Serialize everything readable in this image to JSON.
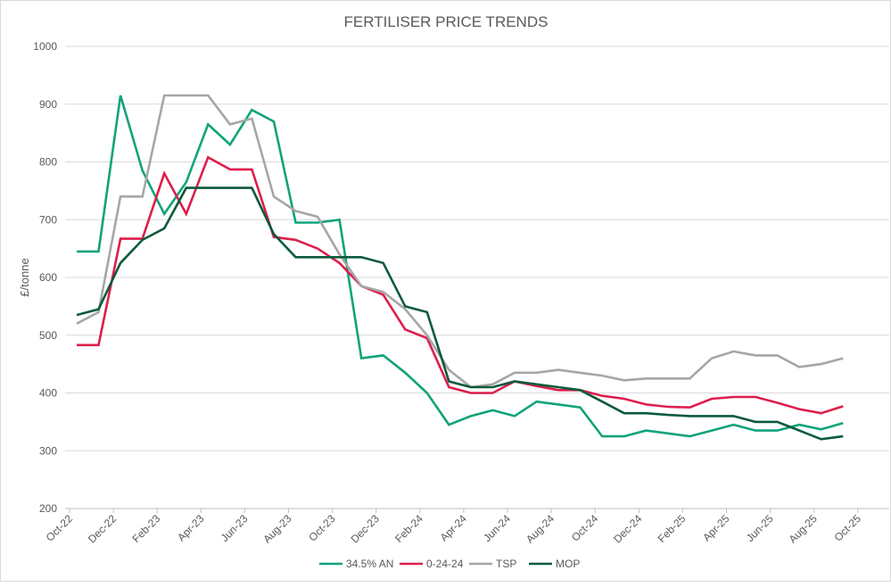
{
  "chart_data": {
    "type": "line",
    "title": "FERTILISER PRICE TRENDS",
    "xlabel": "",
    "ylabel": "£/tonne",
    "ylim": [
      200,
      1000
    ],
    "yticks": [
      "200",
      "300",
      "400",
      "500",
      "600",
      "700",
      "800",
      "900",
      "1000"
    ],
    "grid": true,
    "legend_placement": "bottom",
    "x": [
      "Oct-22",
      "Nov-22",
      "Dec-22",
      "Jan-23",
      "Feb-23",
      "Mar-23",
      "Apr-23",
      "May-23",
      "Jun-23",
      "Jul-23",
      "Aug-23",
      "Sep-23",
      "Oct-23",
      "Nov-23",
      "Dec-23",
      "Jan-24",
      "Feb-24",
      "Mar-24",
      "Apr-24",
      "May-24",
      "Jun-24",
      "Jul-24",
      "Aug-24",
      "Sep-24",
      "Oct-24",
      "Nov-24",
      "Dec-24",
      "Jan-25",
      "Feb-25",
      "Mar-25",
      "Apr-25",
      "May-25",
      "Jun-25",
      "Jul-25",
      "Aug-25",
      "Sep-25"
    ],
    "xtick_labels": [
      "Oct-22",
      "Dec-22",
      "Feb-23",
      "Apr-23",
      "Jun-23",
      "Aug-23",
      "Oct-23",
      "Dec-23",
      "Feb-24",
      "Apr-24",
      "Jun-24",
      "Aug-24",
      "Oct-24",
      "Dec-24",
      "Feb-25",
      "Apr-25",
      "Jun-25",
      "Aug-25",
      "Oct-25"
    ],
    "series": [
      {
        "name": "34.5% AN",
        "color": "#10a37a",
        "values": [
          645,
          645,
          915,
          785,
          710,
          765,
          865,
          830,
          890,
          870,
          695,
          695,
          700,
          460,
          465,
          435,
          400,
          345,
          360,
          370,
          360,
          385,
          380,
          375,
          325,
          325,
          335,
          330,
          325,
          335,
          345,
          335,
          335,
          345,
          337,
          348
        ]
      },
      {
        "name": "0-24-24",
        "color": "#dc1e4b",
        "values": [
          483,
          483,
          667,
          667,
          780,
          710,
          808,
          787,
          787,
          670,
          665,
          650,
          625,
          585,
          570,
          510,
          495,
          410,
          400,
          400,
          420,
          412,
          405,
          405,
          395,
          390,
          380,
          376,
          375,
          390,
          393,
          393,
          383,
          372,
          365,
          377
        ]
      },
      {
        "name": "TSP",
        "color": "#a6a6a6",
        "values": [
          520,
          540,
          740,
          740,
          915,
          915,
          915,
          865,
          875,
          740,
          715,
          705,
          640,
          585,
          575,
          545,
          500,
          440,
          410,
          415,
          435,
          435,
          440,
          435,
          430,
          422,
          425,
          425,
          425,
          460,
          472,
          465,
          465,
          445,
          450,
          460
        ]
      },
      {
        "name": "MOP",
        "color": "#0b5a3c",
        "values": [
          535,
          545,
          625,
          665,
          685,
          755,
          755,
          755,
          755,
          675,
          635,
          635,
          635,
          635,
          625,
          550,
          540,
          420,
          410,
          410,
          420,
          415,
          410,
          405,
          385,
          365,
          365,
          362,
          360,
          360,
          360,
          350,
          350,
          335,
          320,
          325
        ]
      }
    ]
  }
}
